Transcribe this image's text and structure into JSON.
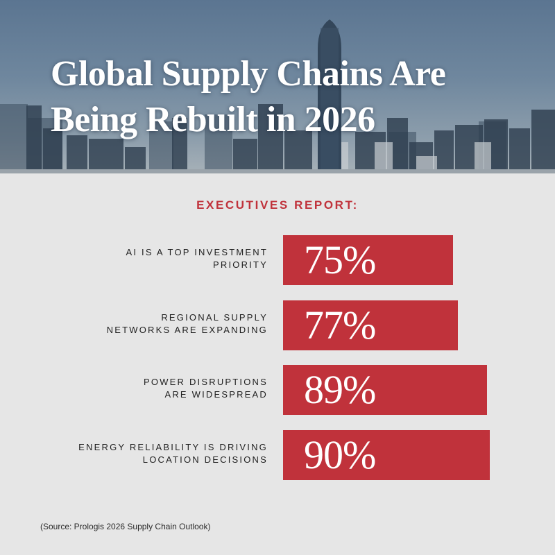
{
  "title_lines": [
    "Global Supply Chains Are",
    "Being Rebuilt in 2026"
  ],
  "subtitle": "EXECUTIVES REPORT:",
  "source": "(Source: Prologis 2026 Supply Chain Outlook)",
  "colors": {
    "bar": "#c0323b",
    "accent_text": "#c0323b",
    "background": "#e6e6e6"
  },
  "chart_data": {
    "type": "bar",
    "orientation": "horizontal",
    "title": "EXECUTIVES REPORT:",
    "unit": "%",
    "categories": [
      [
        "AI IS A TOP INVESTMENT",
        "PRIORITY"
      ],
      [
        "REGIONAL SUPPLY",
        "NETWORKS ARE EXPANDING"
      ],
      [
        "POWER DISRUPTIONS",
        "ARE WIDESPREAD"
      ],
      [
        "ENERGY RELIABILITY IS DRIVING",
        "LOCATION DECISIONS"
      ]
    ],
    "values": [
      75,
      77,
      89,
      90
    ],
    "data_labels": [
      "75%",
      "77%",
      "89%",
      "90%"
    ],
    "grid": false,
    "legend": "none"
  }
}
